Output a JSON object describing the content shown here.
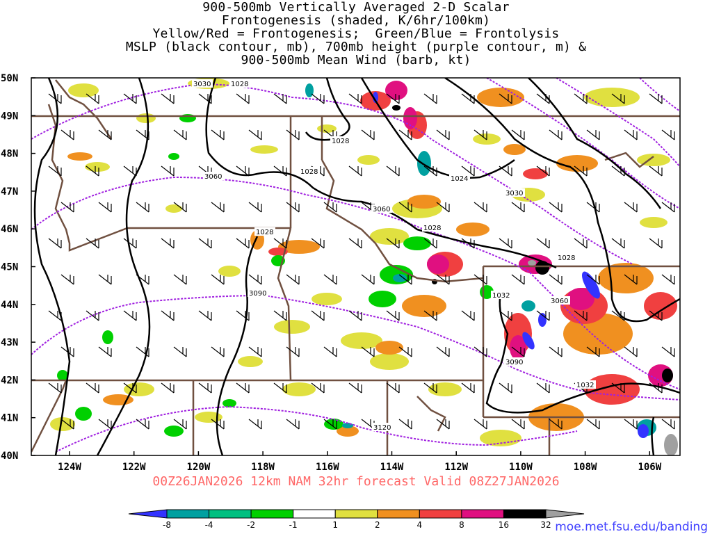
{
  "title_lines": [
    "900-500mb Vertically Averaged 2-D Scalar",
    "Frontogenesis (shaded, K/6hr/100km)",
    "Yellow/Red = Frontogenesis;  Green/Blue = Frontolysis",
    "MSLP (black contour, mb), 700mb height (purple contour, m) &",
    "900-500mb Mean Wind (barb, kt)"
  ],
  "valid_text": "00Z26JAN2026 12km NAM 32hr forecast Valid 08Z27JAN2026",
  "credit": "moe.met.fsu.edu/banding",
  "lat_labels": [
    "50N",
    "49N",
    "48N",
    "47N",
    "46N",
    "45N",
    "44N",
    "43N",
    "42N",
    "41N",
    "40N"
  ],
  "lon_labels": [
    "124W",
    "122W",
    "120W",
    "118W",
    "116W",
    "114W",
    "112W",
    "110W",
    "108W",
    "106W"
  ],
  "colorbar": {
    "labels": [
      "-8",
      "-4",
      "-2",
      "-1",
      "1",
      "2",
      "4",
      "8",
      "16",
      "32"
    ],
    "colors": [
      "#3333ff",
      "#00a0a0",
      "#00c080",
      "#00d000",
      "#ffffff",
      "#e0e040",
      "#f09020",
      "#f04040",
      "#e01080",
      "#000000",
      "#a0a0a0"
    ]
  },
  "contour_labels": {
    "mslp": [
      "1028",
      "1028",
      "1028",
      "1028",
      "1024",
      "1028",
      "1028",
      "1032",
      "1032"
    ],
    "height": [
      "3030",
      "3060",
      "3060",
      "3030",
      "3060",
      "3090",
      "3090",
      "3120"
    ]
  }
}
